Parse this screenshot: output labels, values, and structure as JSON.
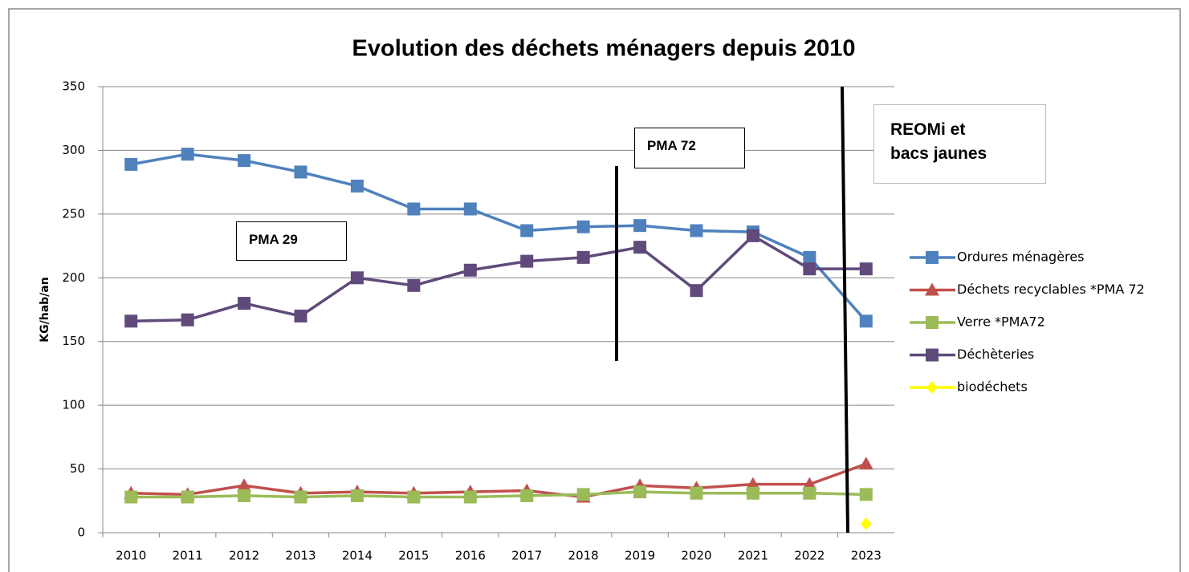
{
  "chart_data": {
    "type": "line",
    "title": "Evolution des déchets ménagers depuis 2010",
    "y_label": "KG/hab/an",
    "categories": [
      "2010",
      "2011",
      "2012",
      "2013",
      "2014",
      "2015",
      "2016",
      "2017",
      "2018",
      "2019",
      "2020",
      "2021",
      "2022",
      "2023"
    ],
    "series": [
      {
        "name": "Ordures ménagères",
        "color": "#4f81bd",
        "marker": "square",
        "values": [
          289,
          297,
          292,
          283,
          272,
          254,
          254,
          237,
          240,
          241,
          237,
          236,
          216,
          166
        ]
      },
      {
        "name": "Déchets recyclables *PMA 72",
        "color": "#c0504d",
        "marker": "triangle",
        "values": [
          31,
          30,
          37,
          31,
          32,
          31,
          32,
          33,
          28,
          37,
          35,
          38,
          38,
          54
        ]
      },
      {
        "name": "Verre *PMA72",
        "color": "#9bbb59",
        "marker": "square",
        "values": [
          28,
          28,
          29,
          28,
          29,
          28,
          28,
          29,
          30,
          32,
          31,
          31,
          31,
          30
        ]
      },
      {
        "name": "Déchèteries",
        "color": "#604a7b",
        "marker": "square",
        "values": [
          166,
          167,
          180,
          170,
          200,
          194,
          206,
          213,
          216,
          224,
          190,
          233,
          207,
          207
        ]
      },
      {
        "name": "biodéchets",
        "color": "#ffff00",
        "marker": "diamond",
        "values": [
          null,
          null,
          null,
          null,
          null,
          null,
          null,
          null,
          null,
          null,
          null,
          null,
          null,
          7
        ]
      }
    ],
    "ylim": [
      0,
      350
    ],
    "yticks": [
      0,
      50,
      100,
      150,
      200,
      250,
      300,
      350
    ],
    "grid": true,
    "legend": "right",
    "annotations": [
      "PMA 29",
      "PMA 72",
      "REOMi et bacs jaunes"
    ]
  }
}
